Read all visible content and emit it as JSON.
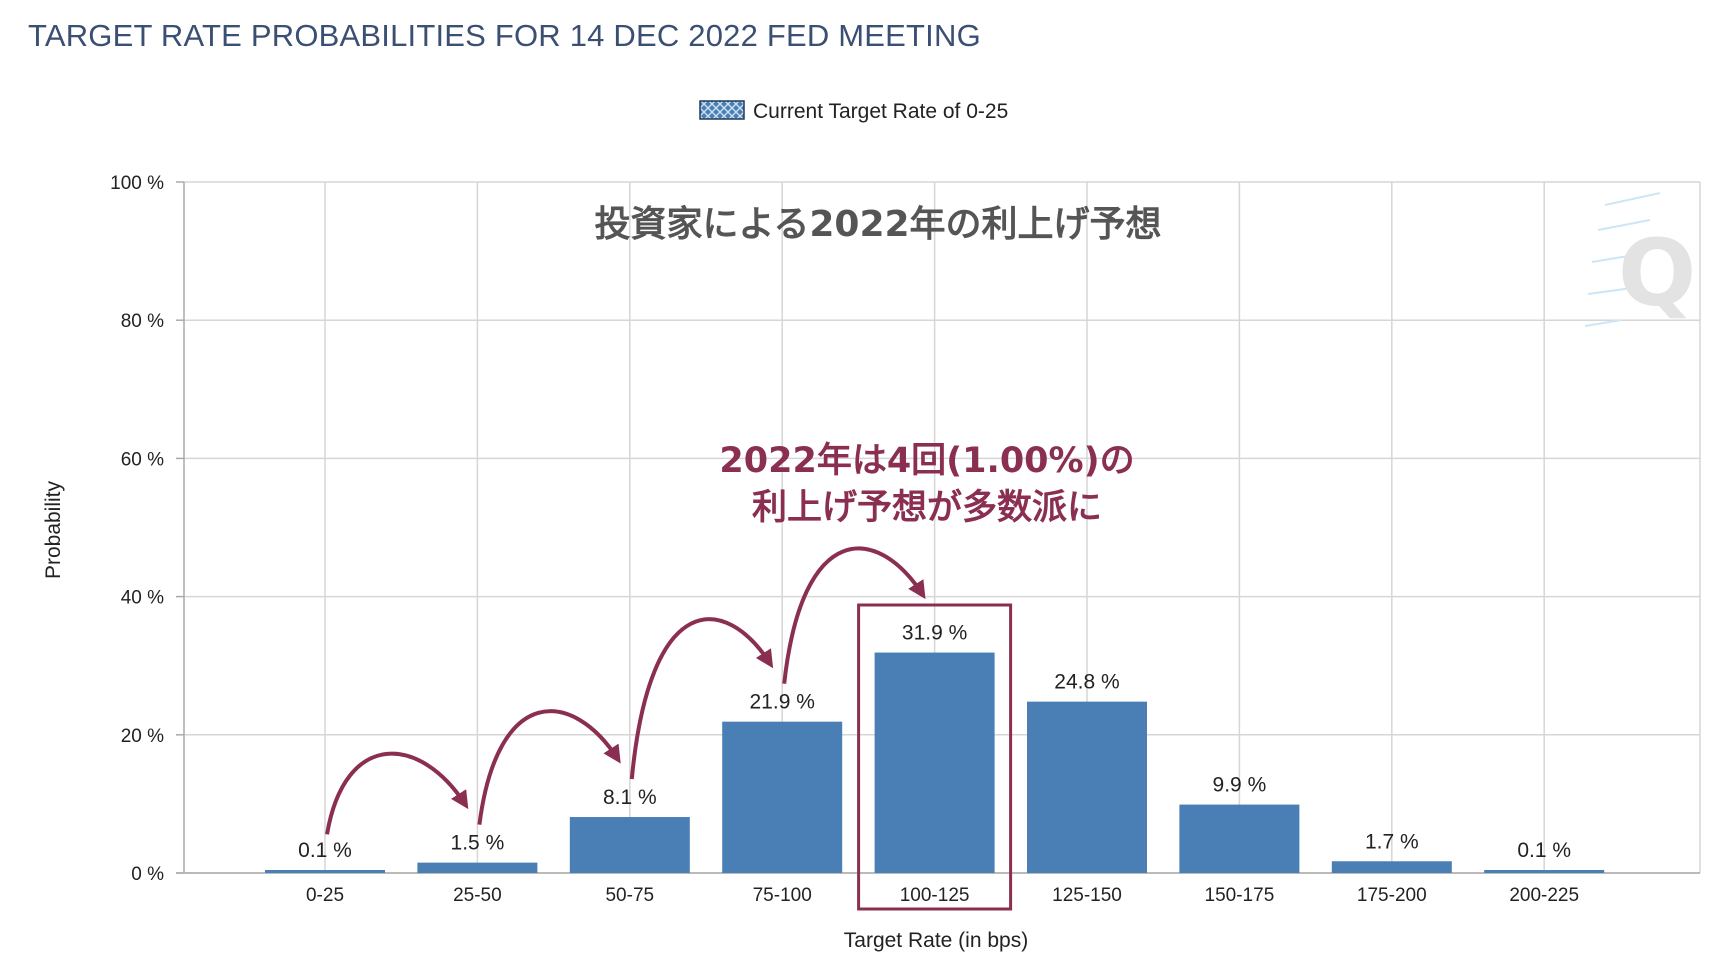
{
  "title": "TARGET RATE PROBABILITIES FOR 14 DEC 2022 FED MEETING",
  "legend": {
    "label": "Current Target Rate of 0-25",
    "position": "top-center"
  },
  "overlay_title": "投資家による2022年の利上げ予想",
  "annotation": {
    "line1": "2022年は4回(1.00%)の",
    "line2": "利上げ予想が多数派に",
    "highlight_category": "100-125"
  },
  "watermark": "Q",
  "colors": {
    "bar": "#4a7fb5",
    "accent": "#8b2f52",
    "title": "#3b4f73",
    "grid": "#d6d6d6"
  },
  "chart_data": {
    "type": "bar",
    "title": "TARGET RATE PROBABILITIES FOR 14 DEC 2022 FED MEETING",
    "xlabel": "Target Rate (in bps)",
    "ylabel": "Probability",
    "categories": [
      "0-25",
      "25-50",
      "50-75",
      "75-100",
      "100-125",
      "125-150",
      "150-175",
      "175-200",
      "200-225"
    ],
    "values": [
      0.1,
      1.5,
      8.1,
      21.9,
      31.9,
      24.8,
      9.9,
      1.7,
      0.1
    ],
    "value_labels": [
      "0.1 %",
      "1.5 %",
      "8.1 %",
      "21.9 %",
      "31.9 %",
      "24.8 %",
      "9.9 %",
      "1.7 %",
      "0.1 %"
    ],
    "yticks": [
      0,
      20,
      40,
      60,
      80,
      100
    ],
    "ytick_labels": [
      "0 %",
      "20 %",
      "40 %",
      "60 %",
      "80 %",
      "100 %"
    ],
    "ylim": [
      0,
      100
    ],
    "grid": true,
    "legend": "top-center"
  }
}
